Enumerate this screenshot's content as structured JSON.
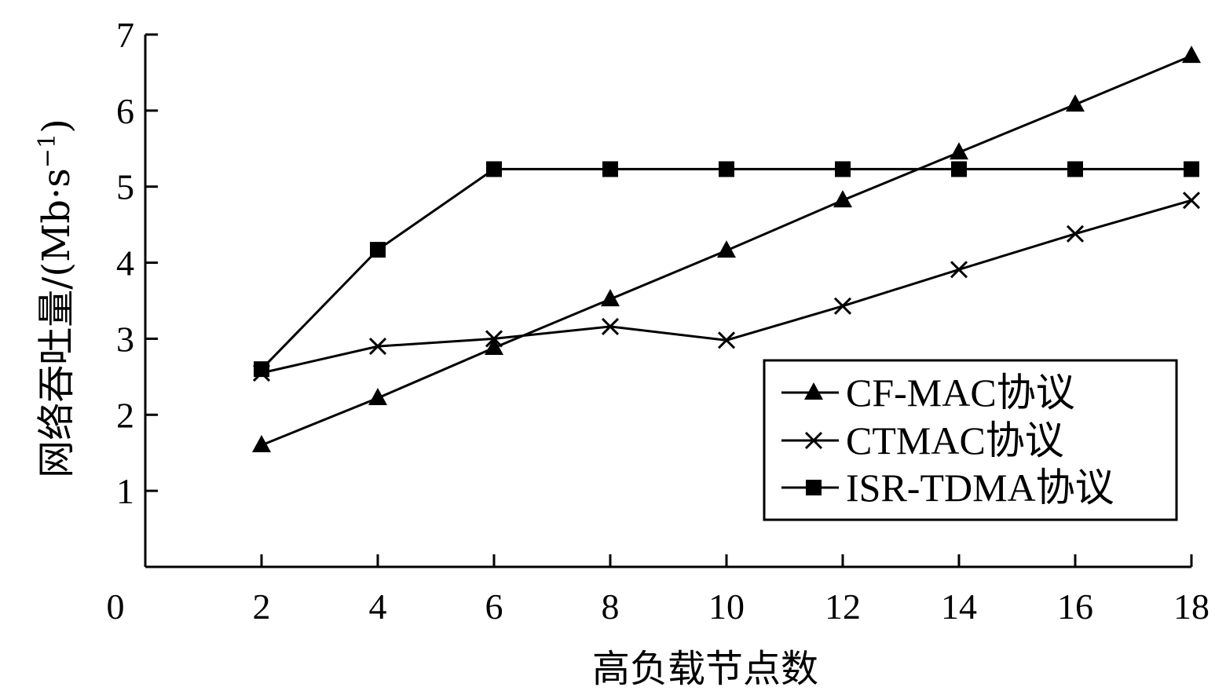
{
  "chart_data": {
    "type": "line",
    "title": "",
    "xlabel": "高负载节点数",
    "ylabel": "网络吞吐量/(Mb·s",
    "ylabel_superscript": "−1",
    "ylabel_close": ")",
    "xlim": [
      0,
      18
    ],
    "ylim": [
      0,
      7
    ],
    "x_ticks": [
      0,
      2,
      4,
      6,
      8,
      10,
      12,
      14,
      16,
      18
    ],
    "y_ticks": [
      1,
      2,
      3,
      4,
      5,
      6,
      7
    ],
    "x": [
      2,
      4,
      6,
      8,
      10,
      12,
      14,
      16,
      18
    ],
    "grid": false,
    "legend_position": "bottom-right",
    "series": [
      {
        "name": "CF-MAC协议",
        "marker": "triangle",
        "values": [
          1.6,
          2.22,
          2.88,
          3.52,
          4.16,
          4.82,
          5.45,
          6.08,
          6.72
        ]
      },
      {
        "name": "CTMAC协议",
        "marker": "x",
        "values": [
          2.55,
          2.9,
          3.0,
          3.16,
          2.98,
          3.43,
          3.91,
          4.38,
          4.82
        ]
      },
      {
        "name": "ISR-TDMA协议",
        "marker": "square",
        "values": [
          2.6,
          4.17,
          5.23,
          5.23,
          5.23,
          5.23,
          5.23,
          5.23,
          5.23
        ]
      }
    ],
    "colors": {
      "line": "#000000",
      "background": "#ffffff"
    }
  }
}
